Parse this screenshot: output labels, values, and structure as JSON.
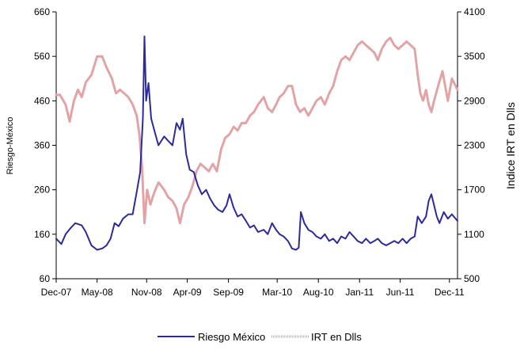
{
  "chart_data": {
    "type": "line",
    "title": "",
    "y_left_label": "Riesgo-México",
    "y_right_label": "Indice IRT  en Dlls",
    "y_left_range": [
      60,
      660
    ],
    "y_left_ticks": [
      60,
      160,
      260,
      360,
      460,
      560,
      660
    ],
    "y_right_range": [
      500,
      4100
    ],
    "y_right_ticks": [
      500,
      1100,
      1700,
      2300,
      2900,
      3500,
      4100
    ],
    "x_range": [
      "2007-12-01",
      "2011-12-31"
    ],
    "x_tick_labels": [
      "Dec-07",
      "May-08",
      "Nov-08",
      "Apr-09",
      "Sep-09",
      "Mar-10",
      "Aug-10",
      "Jan-11",
      "Jun-11",
      "Dec-11"
    ],
    "x_tick_dates": [
      "2007-12-01",
      "2008-05-01",
      "2008-11-01",
      "2009-04-01",
      "2009-09-01",
      "2010-03-01",
      "2010-08-01",
      "2011-01-01",
      "2011-06-01",
      "2011-12-01"
    ],
    "grid": false,
    "legend_position": "bottom",
    "series": [
      {
        "name": "Riesgo México",
        "axis": "left",
        "color": "#2b2b9a",
        "points": [
          [
            "2007-12-01",
            150
          ],
          [
            "2007-12-20",
            138
          ],
          [
            "2008-01-05",
            160
          ],
          [
            "2008-01-25",
            175
          ],
          [
            "2008-02-10",
            185
          ],
          [
            "2008-03-05",
            180
          ],
          [
            "2008-03-20",
            165
          ],
          [
            "2008-04-10",
            135
          ],
          [
            "2008-05-01",
            125
          ],
          [
            "2008-05-20",
            128
          ],
          [
            "2008-06-05",
            135
          ],
          [
            "2008-06-20",
            150
          ],
          [
            "2008-07-05",
            185
          ],
          [
            "2008-07-20",
            178
          ],
          [
            "2008-08-05",
            195
          ],
          [
            "2008-08-25",
            205
          ],
          [
            "2008-09-10",
            205
          ],
          [
            "2008-09-25",
            255
          ],
          [
            "2008-10-08",
            300
          ],
          [
            "2008-10-18",
            420
          ],
          [
            "2008-10-24",
            605
          ],
          [
            "2008-10-30",
            460
          ],
          [
            "2008-11-08",
            500
          ],
          [
            "2008-11-18",
            420
          ],
          [
            "2008-12-01",
            390
          ],
          [
            "2008-12-15",
            360
          ],
          [
            "2009-01-05",
            380
          ],
          [
            "2009-01-20",
            370
          ],
          [
            "2009-02-05",
            360
          ],
          [
            "2009-02-20",
            410
          ],
          [
            "2009-03-05",
            395
          ],
          [
            "2009-03-15",
            420
          ],
          [
            "2009-03-28",
            340
          ],
          [
            "2009-04-10",
            305
          ],
          [
            "2009-04-25",
            300
          ],
          [
            "2009-05-10",
            270
          ],
          [
            "2009-05-25",
            250
          ],
          [
            "2009-06-10",
            260
          ],
          [
            "2009-06-25",
            240
          ],
          [
            "2009-07-10",
            225
          ],
          [
            "2009-07-25",
            215
          ],
          [
            "2009-08-10",
            210
          ],
          [
            "2009-08-25",
            225
          ],
          [
            "2009-09-05",
            250
          ],
          [
            "2009-09-20",
            220
          ],
          [
            "2009-10-05",
            200
          ],
          [
            "2009-10-20",
            205
          ],
          [
            "2009-11-05",
            190
          ],
          [
            "2009-11-20",
            175
          ],
          [
            "2009-12-05",
            180
          ],
          [
            "2009-12-20",
            165
          ],
          [
            "2010-01-10",
            170
          ],
          [
            "2010-01-25",
            160
          ],
          [
            "2010-02-10",
            185
          ],
          [
            "2010-02-25",
            170
          ],
          [
            "2010-03-10",
            160
          ],
          [
            "2010-03-25",
            155
          ],
          [
            "2010-04-10",
            145
          ],
          [
            "2010-04-25",
            128
          ],
          [
            "2010-05-10",
            125
          ],
          [
            "2010-05-20",
            130
          ],
          [
            "2010-05-28",
            210
          ],
          [
            "2010-06-10",
            185
          ],
          [
            "2010-06-25",
            170
          ],
          [
            "2010-07-10",
            165
          ],
          [
            "2010-07-25",
            155
          ],
          [
            "2010-08-10",
            150
          ],
          [
            "2010-08-25",
            160
          ],
          [
            "2010-09-10",
            145
          ],
          [
            "2010-09-25",
            150
          ],
          [
            "2010-10-10",
            140
          ],
          [
            "2010-10-25",
            155
          ],
          [
            "2010-11-10",
            150
          ],
          [
            "2010-11-25",
            165
          ],
          [
            "2010-12-10",
            155
          ],
          [
            "2010-12-25",
            145
          ],
          [
            "2011-01-10",
            140
          ],
          [
            "2011-01-25",
            150
          ],
          [
            "2011-02-10",
            140
          ],
          [
            "2011-02-25",
            145
          ],
          [
            "2011-03-10",
            150
          ],
          [
            "2011-03-25",
            140
          ],
          [
            "2011-04-10",
            135
          ],
          [
            "2011-04-25",
            140
          ],
          [
            "2011-05-10",
            145
          ],
          [
            "2011-05-25",
            140
          ],
          [
            "2011-06-10",
            150
          ],
          [
            "2011-06-25",
            140
          ],
          [
            "2011-07-10",
            150
          ],
          [
            "2011-07-25",
            155
          ],
          [
            "2011-08-05",
            200
          ],
          [
            "2011-08-20",
            185
          ],
          [
            "2011-09-05",
            200
          ],
          [
            "2011-09-15",
            235
          ],
          [
            "2011-09-25",
            250
          ],
          [
            "2011-10-05",
            225
          ],
          [
            "2011-10-15",
            200
          ],
          [
            "2011-10-25",
            185
          ],
          [
            "2011-11-10",
            210
          ],
          [
            "2011-11-25",
            195
          ],
          [
            "2011-12-10",
            205
          ],
          [
            "2011-12-31",
            190
          ]
        ]
      },
      {
        "name": "IRT en Dlls",
        "axis": "right",
        "color": "#e3a3a5",
        "points": [
          [
            "2007-12-01",
            2980
          ],
          [
            "2007-12-15",
            2980
          ],
          [
            "2008-01-05",
            2850
          ],
          [
            "2008-01-20",
            2620
          ],
          [
            "2008-02-05",
            2900
          ],
          [
            "2008-02-20",
            3050
          ],
          [
            "2008-03-05",
            2950
          ],
          [
            "2008-03-20",
            3150
          ],
          [
            "2008-04-10",
            3250
          ],
          [
            "2008-05-01",
            3500
          ],
          [
            "2008-05-20",
            3500
          ],
          [
            "2008-06-05",
            3350
          ],
          [
            "2008-06-25",
            3200
          ],
          [
            "2008-07-10",
            3000
          ],
          [
            "2008-07-25",
            3050
          ],
          [
            "2008-08-10",
            3000
          ],
          [
            "2008-08-25",
            2950
          ],
          [
            "2008-09-10",
            2850
          ],
          [
            "2008-09-25",
            2700
          ],
          [
            "2008-10-05",
            2450
          ],
          [
            "2008-10-15",
            2000
          ],
          [
            "2008-10-24",
            1250
          ],
          [
            "2008-11-03",
            1700
          ],
          [
            "2008-11-15",
            1500
          ],
          [
            "2008-11-28",
            1650
          ],
          [
            "2008-12-15",
            1800
          ],
          [
            "2009-01-05",
            1700
          ],
          [
            "2009-01-20",
            1600
          ],
          [
            "2009-02-05",
            1550
          ],
          [
            "2009-02-20",
            1450
          ],
          [
            "2009-03-05",
            1250
          ],
          [
            "2009-03-20",
            1500
          ],
          [
            "2009-04-05",
            1600
          ],
          [
            "2009-04-20",
            1750
          ],
          [
            "2009-05-05",
            1950
          ],
          [
            "2009-05-20",
            2050
          ],
          [
            "2009-06-05",
            2000
          ],
          [
            "2009-06-20",
            1950
          ],
          [
            "2009-07-05",
            2050
          ],
          [
            "2009-07-20",
            1950
          ],
          [
            "2009-08-05",
            2250
          ],
          [
            "2009-08-20",
            2400
          ],
          [
            "2009-09-05",
            2450
          ],
          [
            "2009-09-20",
            2550
          ],
          [
            "2009-10-05",
            2500
          ],
          [
            "2009-10-20",
            2600
          ],
          [
            "2009-11-05",
            2600
          ],
          [
            "2009-11-20",
            2700
          ],
          [
            "2009-12-05",
            2750
          ],
          [
            "2009-12-20",
            2850
          ],
          [
            "2010-01-10",
            2950
          ],
          [
            "2010-01-25",
            2800
          ],
          [
            "2010-02-10",
            2750
          ],
          [
            "2010-02-25",
            2850
          ],
          [
            "2010-03-10",
            2950
          ],
          [
            "2010-03-25",
            3000
          ],
          [
            "2010-04-10",
            3100
          ],
          [
            "2010-04-25",
            3100
          ],
          [
            "2010-05-10",
            2850
          ],
          [
            "2010-05-25",
            2750
          ],
          [
            "2010-06-10",
            2800
          ],
          [
            "2010-06-25",
            2700
          ],
          [
            "2010-07-10",
            2800
          ],
          [
            "2010-07-25",
            2900
          ],
          [
            "2010-08-10",
            2950
          ],
          [
            "2010-08-25",
            2850
          ],
          [
            "2010-09-10",
            3000
          ],
          [
            "2010-09-25",
            3100
          ],
          [
            "2010-10-10",
            3300
          ],
          [
            "2010-10-25",
            3450
          ],
          [
            "2010-11-10",
            3500
          ],
          [
            "2010-11-25",
            3450
          ],
          [
            "2010-12-10",
            3550
          ],
          [
            "2010-12-25",
            3650
          ],
          [
            "2011-01-10",
            3700
          ],
          [
            "2011-01-25",
            3650
          ],
          [
            "2011-02-10",
            3600
          ],
          [
            "2011-02-25",
            3550
          ],
          [
            "2011-03-10",
            3450
          ],
          [
            "2011-03-25",
            3600
          ],
          [
            "2011-04-10",
            3700
          ],
          [
            "2011-04-25",
            3750
          ],
          [
            "2011-05-10",
            3650
          ],
          [
            "2011-05-25",
            3600
          ],
          [
            "2011-06-10",
            3650
          ],
          [
            "2011-06-25",
            3700
          ],
          [
            "2011-07-10",
            3650
          ],
          [
            "2011-07-25",
            3600
          ],
          [
            "2011-08-05",
            3250
          ],
          [
            "2011-08-15",
            3000
          ],
          [
            "2011-08-25",
            2900
          ],
          [
            "2011-09-05",
            3050
          ],
          [
            "2011-09-15",
            2850
          ],
          [
            "2011-09-25",
            2750
          ],
          [
            "2011-10-05",
            2900
          ],
          [
            "2011-10-20",
            3100
          ],
          [
            "2011-11-05",
            3300
          ],
          [
            "2011-11-15",
            3100
          ],
          [
            "2011-11-25",
            2900
          ],
          [
            "2011-12-10",
            3200
          ],
          [
            "2011-12-31",
            3050
          ]
        ]
      }
    ]
  }
}
